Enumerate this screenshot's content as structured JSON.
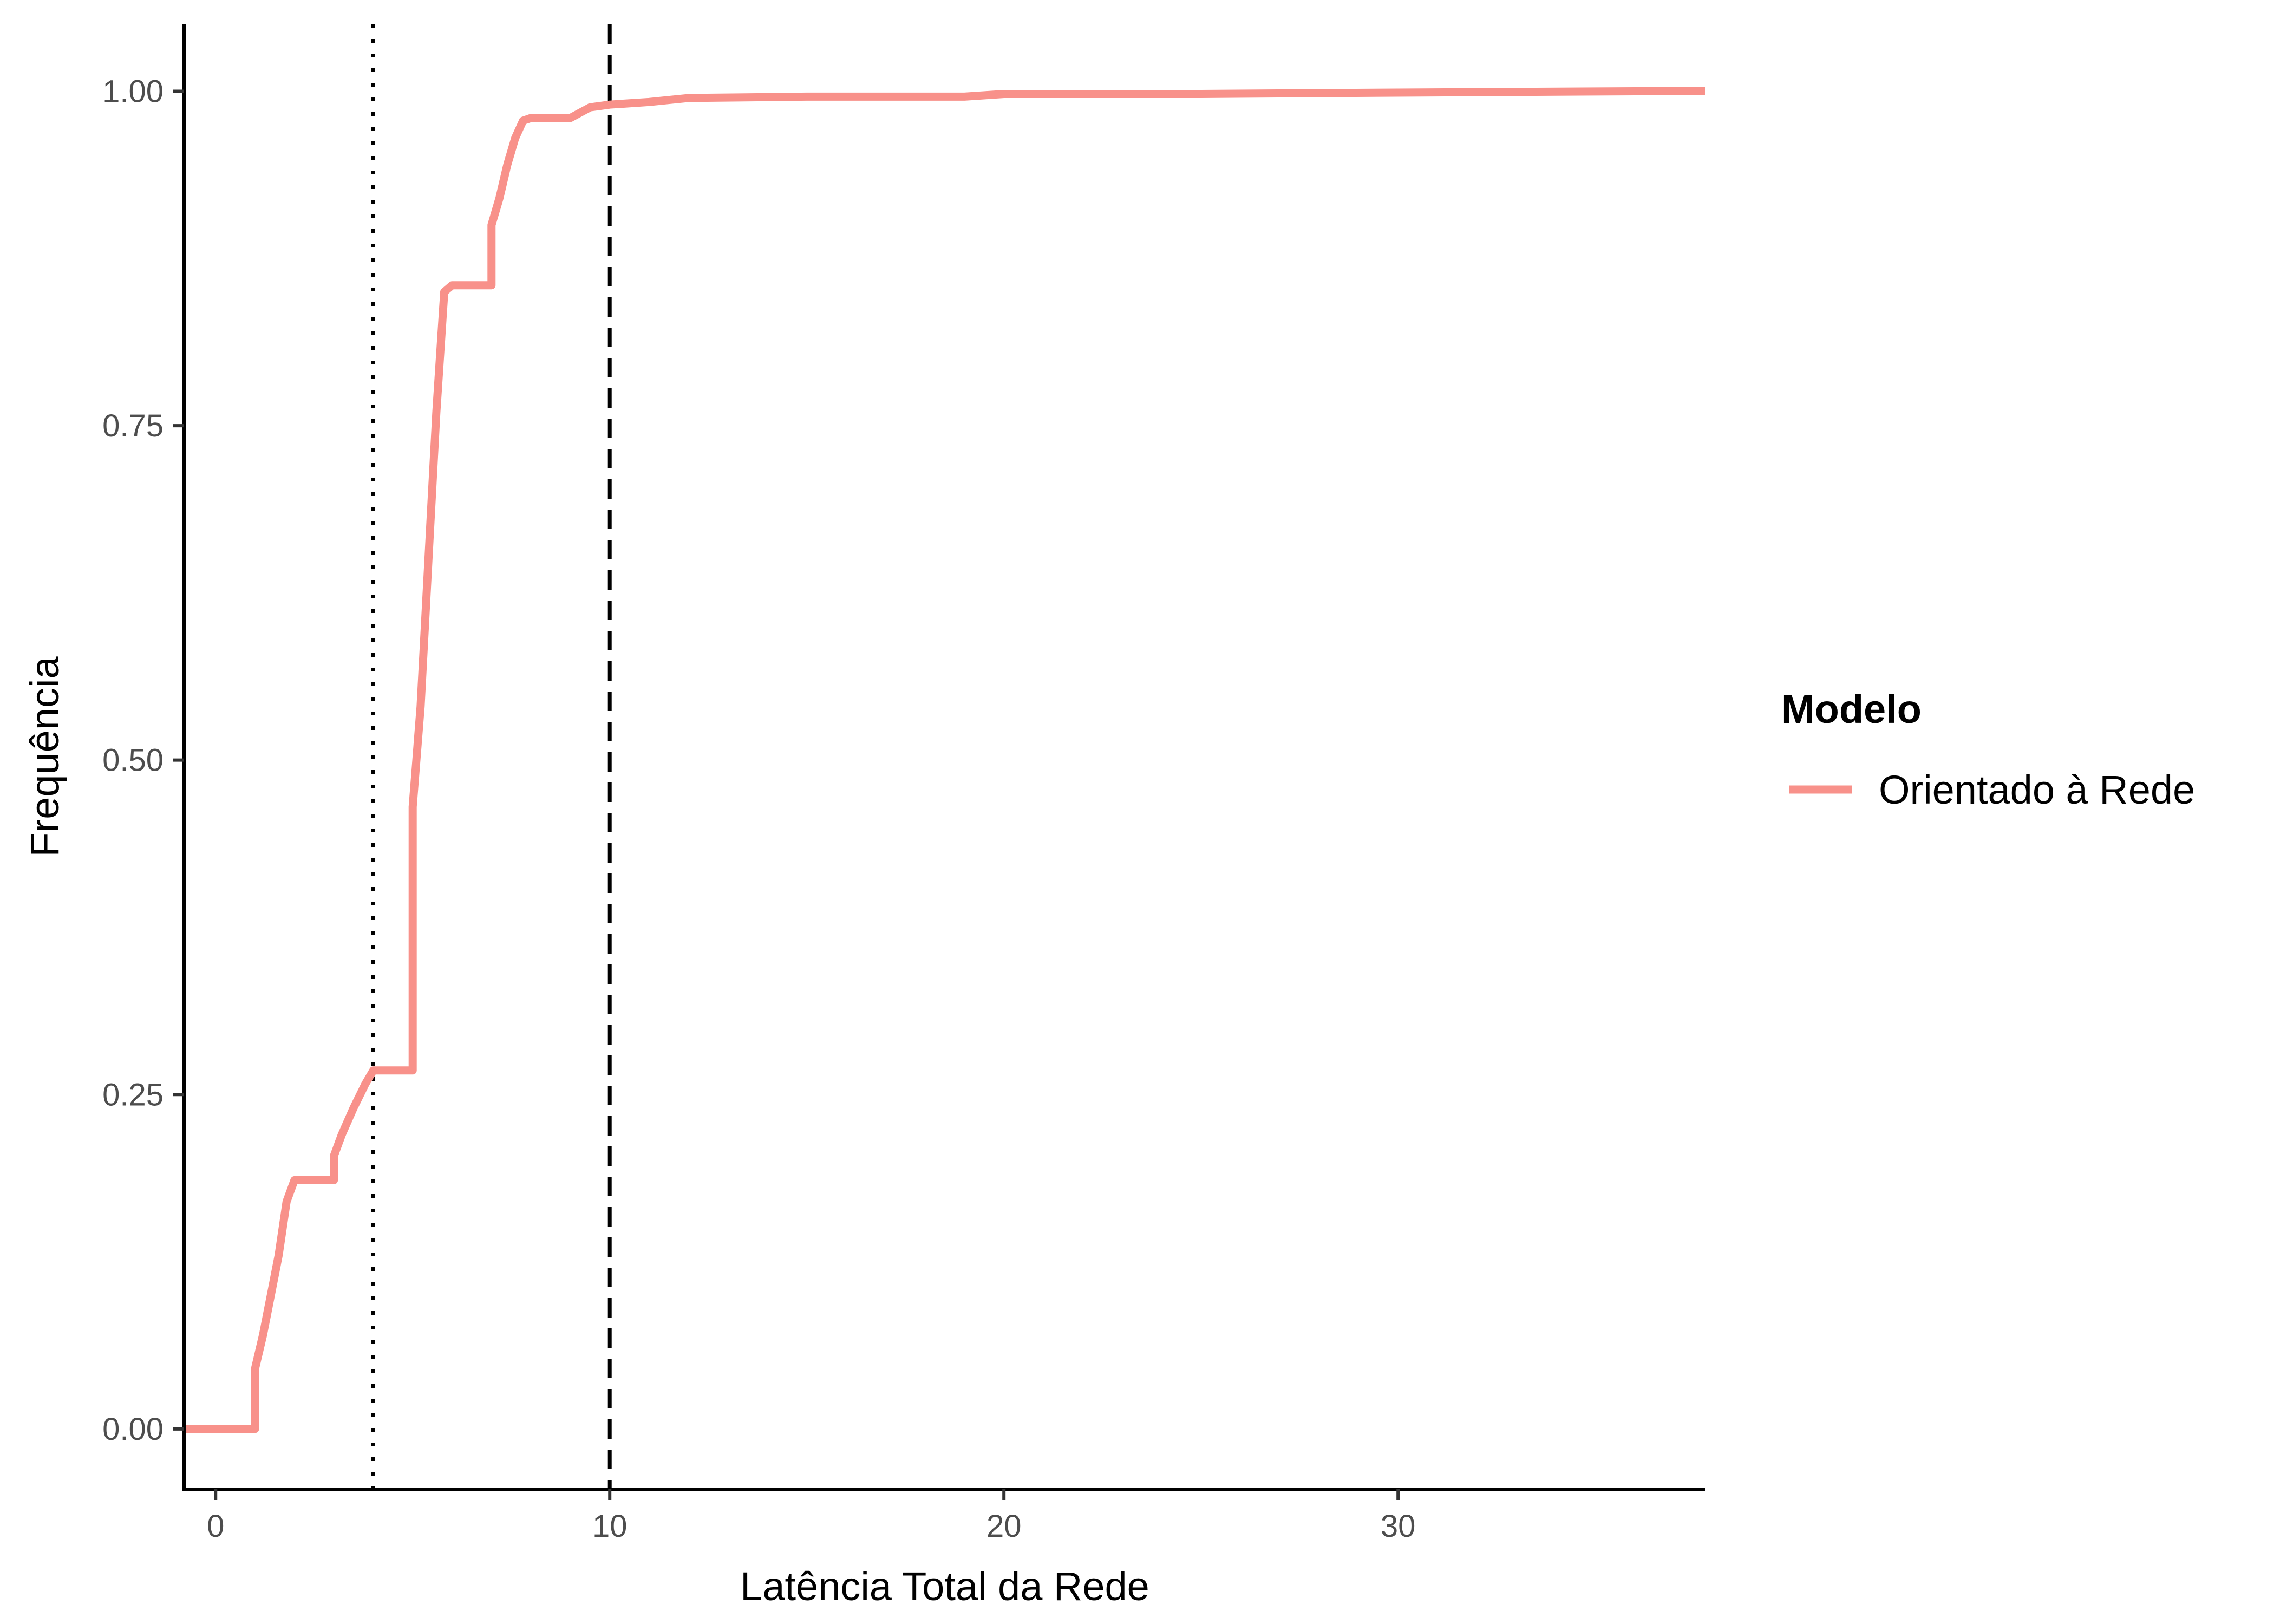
{
  "chart_data": {
    "type": "line",
    "title": "",
    "xlabel": "Latência Total da Rede",
    "ylabel": "Frequência",
    "xlim": [
      -0.8,
      37.8
    ],
    "ylim": [
      -0.045,
      1.05
    ],
    "x_ticks": [
      0,
      10,
      20,
      30
    ],
    "x_tick_labels": [
      "0",
      "10",
      "20",
      "30"
    ],
    "y_ticks": [
      0,
      0.25,
      0.5,
      0.75,
      1.0
    ],
    "y_tick_labels": [
      "0.00",
      "0.25",
      "0.50",
      "0.75",
      "1.00"
    ],
    "grid": false,
    "legend_position": "right",
    "legend_title": "Modelo",
    "colors": {
      "series": "#f8918a",
      "reference_lines": "#000000",
      "axis": "#000000"
    },
    "series": [
      {
        "name": "Orientado à Rede",
        "step": true,
        "x": [
          -0.8,
          1.0,
          1.0,
          1.2,
          1.4,
          1.6,
          1.8,
          2.0,
          3.0,
          3.0,
          3.2,
          3.5,
          3.8,
          4.0,
          5.0,
          5.0,
          5.2,
          5.4,
          5.6,
          5.8,
          6.0,
          7.0,
          7.0,
          7.2,
          7.4,
          7.6,
          7.8,
          8.0,
          9.0,
          9.5,
          10.0,
          11.0,
          12.0,
          15.0,
          19.0,
          20.0,
          25.0,
          30.0,
          36.0,
          37.8
        ],
        "y": [
          0.0,
          0.0,
          0.045,
          0.07,
          0.1,
          0.13,
          0.17,
          0.186,
          0.186,
          0.204,
          0.22,
          0.24,
          0.258,
          0.268,
          0.268,
          0.465,
          0.54,
          0.65,
          0.76,
          0.85,
          0.855,
          0.855,
          0.9,
          0.92,
          0.945,
          0.965,
          0.978,
          0.98,
          0.98,
          0.988,
          0.99,
          0.992,
          0.995,
          0.996,
          0.996,
          0.998,
          0.998,
          0.999,
          1.0,
          1.0
        ]
      }
    ],
    "reference_lines": [
      {
        "axis": "x",
        "value": 4,
        "style": "dotted"
      },
      {
        "axis": "x",
        "value": 10,
        "style": "dashed"
      }
    ]
  }
}
